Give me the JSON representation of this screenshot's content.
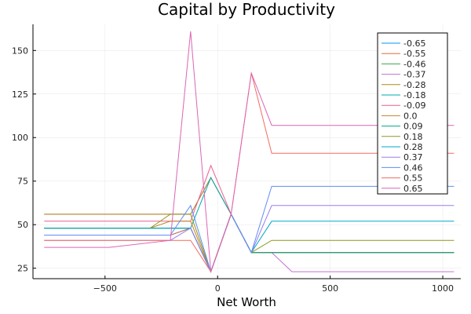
{
  "chart_data": {
    "type": "line",
    "title": "Capital by Productivity",
    "xlabel": "Net Worth",
    "ylabel": "",
    "xlim": [
      -820,
      1080
    ],
    "ylim": [
      19,
      165
    ],
    "xticks": [
      -500,
      0,
      500,
      1000
    ],
    "xtick_labels": [
      "−500",
      "0",
      "500",
      "1000"
    ],
    "yticks": [
      25,
      50,
      75,
      100,
      125,
      150
    ],
    "ytick_labels": [
      "25",
      "50",
      "75",
      "100",
      "125",
      "150"
    ],
    "grid": true,
    "legend_position": "top-right",
    "series": [
      {
        "name": "-0.65",
        "color": "#009AFA",
        "x": [
          -770,
          -210,
          -120,
          -30,
          60,
          150,
          240,
          330,
          1050
        ],
        "y": [
          44,
          44,
          48,
          23,
          56,
          34,
          34,
          34,
          34
        ]
      },
      {
        "name": "-0.55",
        "color": "#E36F47",
        "x": [
          -770,
          -210,
          -120,
          -30,
          60,
          150,
          240,
          330,
          1050
        ],
        "y": [
          44,
          44,
          48,
          23,
          56,
          34,
          34,
          34,
          34
        ]
      },
      {
        "name": "-0.46",
        "color": "#3EA44E",
        "x": [
          -770,
          -210,
          -120,
          -30,
          60,
          150,
          240,
          330,
          1050
        ],
        "y": [
          48,
          48,
          48,
          23,
          56,
          34,
          34,
          34,
          34
        ]
      },
      {
        "name": "-0.37",
        "color": "#C371D2",
        "x": [
          -770,
          -210,
          -120,
          -30,
          60,
          150,
          240,
          330,
          1050
        ],
        "y": [
          56,
          56,
          56,
          77,
          56,
          34,
          34,
          23,
          23
        ]
      },
      {
        "name": "-0.28",
        "color": "#AC8D18",
        "x": [
          -770,
          -210,
          -120,
          -30,
          60,
          150,
          240,
          330,
          1050
        ],
        "y": [
          56,
          56,
          56,
          77,
          56,
          34,
          34,
          34,
          34
        ]
      },
      {
        "name": "-0.18",
        "color": "#00A9AD",
        "x": [
          -770,
          -210,
          -120,
          -30,
          60,
          150,
          240,
          330,
          1050
        ],
        "y": [
          48,
          48,
          48,
          77,
          56,
          34,
          34,
          34,
          34
        ]
      },
      {
        "name": "-0.09",
        "color": "#ED5E93",
        "x": [
          -770,
          -210,
          -120,
          -30,
          60,
          150,
          240,
          330,
          1050
        ],
        "y": [
          52,
          52,
          52,
          84,
          56,
          34,
          34,
          34,
          34
        ]
      },
      {
        "name": "0.0",
        "color": "#C68225",
        "x": [
          -770,
          -300,
          -210,
          -120,
          -30,
          60,
          150,
          240,
          330,
          1050
        ],
        "y": [
          48,
          48,
          52,
          52,
          23,
          56,
          34,
          34,
          34,
          34
        ]
      },
      {
        "name": "0.09",
        "color": "#00A98D",
        "x": [
          -770,
          -210,
          -120,
          -30,
          60,
          150,
          240,
          330,
          1050
        ],
        "y": [
          48,
          48,
          48,
          23,
          56,
          34,
          34,
          34,
          34
        ]
      },
      {
        "name": "0.18",
        "color": "#8E971E",
        "x": [
          -770,
          -300,
          -210,
          -120,
          -30,
          60,
          150,
          240,
          330,
          1050
        ],
        "y": [
          48,
          48,
          56,
          56,
          23,
          56,
          34,
          41,
          41,
          41
        ]
      },
      {
        "name": "0.28",
        "color": "#00A8CB",
        "x": [
          -770,
          -210,
          -120,
          -30,
          60,
          150,
          240,
          330,
          1050
        ],
        "y": [
          48,
          48,
          48,
          23,
          56,
          34,
          52,
          52,
          52
        ]
      },
      {
        "name": "0.37",
        "color": "#9B7FE9",
        "x": [
          -770,
          -210,
          -120,
          -30,
          60,
          150,
          240,
          330,
          1050
        ],
        "y": [
          41,
          41,
          48,
          23,
          56,
          34,
          61,
          61,
          61
        ]
      },
      {
        "name": "0.46",
        "color": "#618DF6",
        "x": [
          -770,
          -210,
          -120,
          -30,
          60,
          150,
          240,
          330,
          1050
        ],
        "y": [
          44,
          44,
          61,
          23,
          56,
          34,
          72,
          72,
          72
        ]
      },
      {
        "name": "0.55",
        "color": "#F36C5E",
        "x": [
          -770,
          -210,
          -120,
          -30,
          60,
          150,
          240,
          330,
          1050
        ],
        "y": [
          41,
          41,
          41,
          23,
          56,
          137,
          91,
          91,
          91
        ]
      },
      {
        "name": "0.65",
        "color": "#DD64B5",
        "x": [
          -770,
          -480,
          -210,
          -120,
          -30,
          60,
          150,
          240,
          330,
          1050
        ],
        "y": [
          37,
          37,
          41,
          161,
          23,
          56,
          137,
          107,
          107,
          107
        ]
      }
    ]
  }
}
